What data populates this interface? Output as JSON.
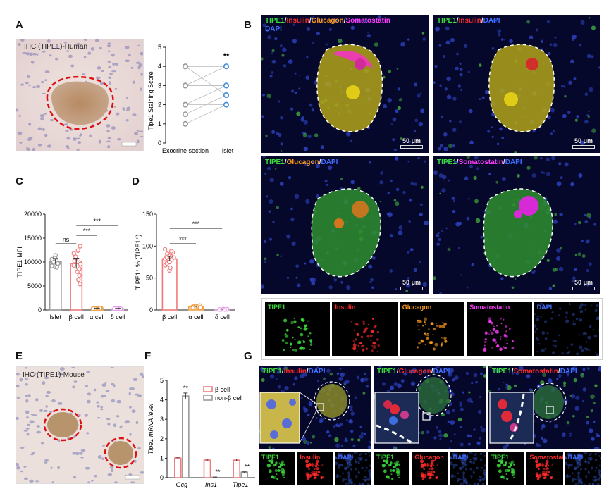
{
  "panel_labels": {
    "A": "A",
    "B": "B",
    "C": "C",
    "D": "D",
    "E": "E",
    "F": "F",
    "G": "G"
  },
  "panel_A": {
    "ihc_caption": "IHC (TIPE1)-Human",
    "chart_ylabel": "Tipe1 Staining Score",
    "chart_xlabels": [
      "Exocrine section",
      "Islet"
    ],
    "significance": "**"
  },
  "panel_B": {
    "scale_label": "50 μm",
    "merge_all": [
      {
        "text": "TIPE1",
        "color": "#3ddc3d"
      },
      {
        "text": "/",
        "color": "#e8e8e8"
      },
      {
        "text": "Insulin",
        "color": "#ff2a2a"
      },
      {
        "text": "/",
        "color": "#e8e8e8"
      },
      {
        "text": "Glucagon",
        "color": "#ff9a1f"
      },
      {
        "text": "/",
        "color": "#e8e8e8"
      },
      {
        "text": "Somatostatin",
        "color": "#ff3cff"
      }
    ],
    "merge_all_line2": {
      "text": "DAPI",
      "color": "#3f6dff"
    },
    "merge_ins": [
      {
        "text": "TIPE1",
        "color": "#3ddc3d"
      },
      {
        "text": "/",
        "color": "#e8e8e8"
      },
      {
        "text": "Insulin",
        "color": "#ff2a2a"
      },
      {
        "text": "/",
        "color": "#e8e8e8"
      },
      {
        "text": "DAPI",
        "color": "#3f6dff"
      }
    ],
    "merge_glu": [
      {
        "text": "TIPE1",
        "color": "#3ddc3d"
      },
      {
        "text": "/",
        "color": "#e8e8e8"
      },
      {
        "text": "Glucagon",
        "color": "#ff9a1f"
      },
      {
        "text": "/",
        "color": "#e8e8e8"
      },
      {
        "text": "DAPI",
        "color": "#3f6dff"
      }
    ],
    "merge_som": [
      {
        "text": "TIPE1",
        "color": "#3ddc3d"
      },
      {
        "text": "/",
        "color": "#e8e8e8"
      },
      {
        "text": "Somatostatin",
        "color": "#ff3cff"
      },
      {
        "text": "/",
        "color": "#e8e8e8"
      },
      {
        "text": "DAPI",
        "color": "#3f6dff"
      }
    ],
    "channels": [
      {
        "text": "TIPE1",
        "color": "#3ddc3d"
      },
      {
        "text": "Insulin",
        "color": "#ff2a2a"
      },
      {
        "text": "Glucagon",
        "color": "#ff9a1f"
      },
      {
        "text": "Somatostatin",
        "color": "#ff3cff"
      },
      {
        "text": "DAPI",
        "color": "#3f6dff"
      }
    ]
  },
  "panel_E": {
    "ihc_caption": "IHC (TIPE1)-Mouse"
  },
  "panel_G": {
    "merge_ins": [
      {
        "text": "TIPE1",
        "color": "#3ddc3d"
      },
      {
        "text": "/",
        "color": "#e8e8e8"
      },
      {
        "text": "Insulin",
        "color": "#ff2a2a"
      },
      {
        "text": "/",
        "color": "#e8e8e8"
      },
      {
        "text": "DAPI",
        "color": "#3f6dff"
      }
    ],
    "merge_glu": [
      {
        "text": "TIPE1",
        "color": "#3ddc3d"
      },
      {
        "text": "/",
        "color": "#e8e8e8"
      },
      {
        "text": "Glucagon",
        "color": "#ff2a2a"
      },
      {
        "text": "/",
        "color": "#e8e8e8"
      },
      {
        "text": "DAPI",
        "color": "#3f6dff"
      }
    ],
    "merge_som": [
      {
        "text": "TIPE1",
        "color": "#3ddc3d"
      },
      {
        "text": "/",
        "color": "#e8e8e8"
      },
      {
        "text": "Somatostatin",
        "color": "#ff2a2a"
      },
      {
        "text": "/",
        "color": "#e8e8e8"
      },
      {
        "text": "DAPI",
        "color": "#3f6dff"
      }
    ],
    "channels_ins": [
      {
        "text": "TIPE1",
        "color": "#3ddc3d"
      },
      {
        "text": "Insulin",
        "color": "#ff2a2a"
      },
      {
        "text": "DAPI",
        "color": "#3f6dff"
      }
    ],
    "channels_glu": [
      {
        "text": "TIPE1",
        "color": "#3ddc3d"
      },
      {
        "text": "Glucagon",
        "color": "#ff2a2a"
      },
      {
        "text": "DAPI",
        "color": "#3f6dff"
      }
    ],
    "channels_som": [
      {
        "text": "TIPE1",
        "color": "#3ddc3d"
      },
      {
        "text": "Somatostatin",
        "color": "#ff2a2a"
      },
      {
        "text": "DAPI",
        "color": "#3f6dff"
      }
    ]
  },
  "chart_data": [
    {
      "id": "A",
      "type": "scatter",
      "title": "",
      "xlabel": "",
      "ylabel": "Tipe1 Staining Score",
      "categories": [
        "Exocrine section",
        "Islet"
      ],
      "ylim": [
        0,
        5
      ],
      "yticks": [
        0,
        1,
        2,
        3,
        4,
        5
      ],
      "pairs": [
        [
          1,
          2
        ],
        [
          1.5,
          2.5
        ],
        [
          2,
          3
        ],
        [
          2,
          2
        ],
        [
          3,
          3
        ],
        [
          3,
          4
        ],
        [
          4,
          4
        ],
        [
          4,
          4
        ],
        [
          4,
          2.5
        ],
        [
          3,
          3
        ]
      ],
      "annotation": "**",
      "colors": [
        "#9a9a9a",
        "#4a90d9"
      ]
    },
    {
      "id": "C",
      "type": "bar",
      "title": "",
      "xlabel": "",
      "ylabel": "TIPE1-MFI",
      "categories": [
        "Islet",
        "β cell",
        "α cell",
        "δ cell"
      ],
      "values": [
        10100,
        9700,
        300,
        250
      ],
      "errors": [
        650,
        1100,
        80,
        80
      ],
      "points": [
        [
          9000,
          9500,
          10000,
          10500,
          11000,
          11400,
          9200,
          9800,
          10300,
          10800,
          10100,
          9700,
          8900,
          10600
        ],
        [
          5400,
          6300,
          7200,
          8000,
          8600,
          9300,
          9900,
          10500,
          11100,
          11800,
          12400,
          13300,
          9600,
          10200
        ],
        [
          200,
          250,
          300,
          350,
          400,
          300,
          250,
          350,
          300,
          280
        ],
        [
          150,
          200,
          250,
          300,
          350,
          250,
          200,
          300,
          280,
          260
        ]
      ],
      "ylim": [
        0,
        20000
      ],
      "yticks": [
        0,
        5000,
        10000,
        15000,
        20000
      ],
      "colors": [
        "#9a9a9a",
        "#f07b7b",
        "#f0a14a",
        "#e79be8"
      ],
      "comparisons": [
        {
          "from": 0,
          "to": 1,
          "label": "ns"
        },
        {
          "from": 1,
          "to": 2,
          "label": "***"
        },
        {
          "from": 1,
          "to": 3,
          "label": "***"
        }
      ]
    },
    {
      "id": "D",
      "type": "bar",
      "title": "",
      "xlabel": "",
      "ylabel": "TIPE1⁺ % (TIPE1⁺)",
      "categories": [
        "β cell",
        "α cell",
        "δ cell"
      ],
      "values": [
        80,
        5,
        1
      ],
      "errors": [
        4,
        1,
        0.5
      ],
      "points": [
        [
          62,
          66,
          70,
          73,
          76,
          78,
          80,
          82,
          84,
          86,
          88,
          90,
          92,
          95,
          75,
          83,
          79
        ],
        [
          3,
          4,
          5,
          6,
          7,
          5,
          4,
          6,
          5,
          3
        ],
        [
          0.5,
          1,
          1.5,
          1,
          0.8,
          1.2,
          0.7
        ]
      ],
      "ylim": [
        0,
        150
      ],
      "yticks": [
        0,
        50,
        100,
        150
      ],
      "colors": [
        "#f07b7b",
        "#f0a14a",
        "#e79be8"
      ],
      "comparisons": [
        {
          "from": 0,
          "to": 1,
          "label": "***"
        },
        {
          "from": 0,
          "to": 2,
          "label": "***"
        }
      ]
    },
    {
      "id": "F",
      "type": "bar",
      "title": "",
      "xlabel": "",
      "ylabel": "Tipe1 mRNA level",
      "categories": [
        "Gcg",
        "Ins1",
        "Tipe1"
      ],
      "series": [
        {
          "name": "β cell",
          "values": [
            1.0,
            0.9,
            0.9
          ],
          "errors": [
            0.05,
            0.05,
            0.06
          ],
          "color": "#f07b7b"
        },
        {
          "name": "non-β cell",
          "values": [
            4.2,
            0.02,
            0.28
          ],
          "errors": [
            0.15,
            0.01,
            0.02
          ],
          "color": "#9a9a9a"
        }
      ],
      "annotations": [
        "**",
        "**",
        "**"
      ],
      "ylim": [
        0,
        5
      ],
      "yticks": [
        0,
        1,
        2,
        3,
        4,
        5
      ]
    }
  ]
}
